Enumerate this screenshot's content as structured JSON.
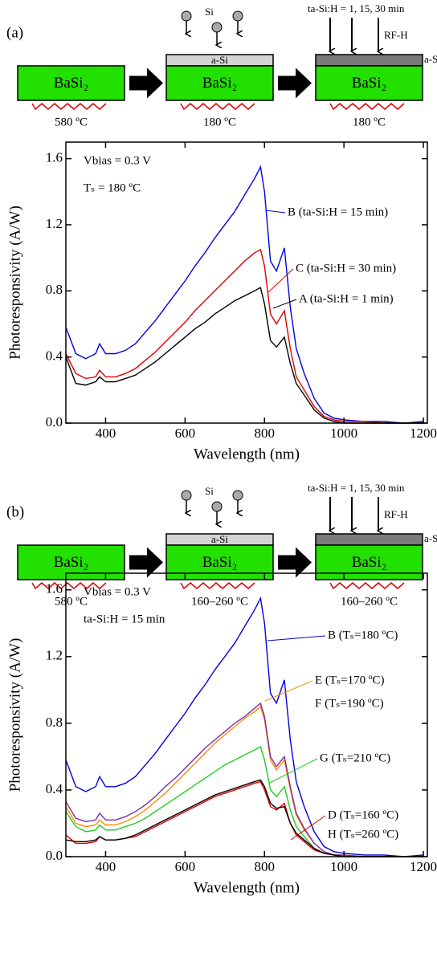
{
  "diagrams": [
    {
      "label": "(a)",
      "steps": [
        {
          "block": "BaSi₂",
          "temp": "580 ºC"
        },
        {
          "block": "BaSi₂",
          "layer": "a-Si",
          "source": "Si",
          "temp": "180 ºC"
        },
        {
          "block": "BaSi₂",
          "layer": "a-Si:H",
          "treatment": "RF-H",
          "time": "ta-Si:H = 1, 15, 30 min",
          "temp": "180 ºC"
        }
      ]
    },
    {
      "label": "(b)",
      "steps": [
        {
          "block": "BaSi₂",
          "temp": "580 ºC"
        },
        {
          "block": "BaSi₂",
          "layer": "a-Si",
          "source": "Si",
          "temp": "160–260 ºC"
        },
        {
          "block": "BaSi₂",
          "layer": "a-Si:H",
          "treatment": "RF-H",
          "time": "ta-Si:H = 1, 15, 30 min",
          "temp": "160–260 ºC"
        }
      ]
    }
  ],
  "chart_data": [
    {
      "type": "line",
      "xlabel": "Wavelength (nm)",
      "ylabel": "Photoresponsivity (A/W)",
      "annotations": [
        "Vbias = 0.3 V",
        "Tₛ = 180 ºC"
      ],
      "xlim": [
        300,
        1210
      ],
      "ylim": [
        0,
        1.7
      ],
      "xticks": [
        400,
        600,
        800,
        1000,
        1200
      ],
      "yticks": [
        {
          "value": 0,
          "label": "0.0"
        },
        0.4,
        0.8,
        1.2,
        1.6
      ],
      "grid": false,
      "x": [
        300,
        325,
        350,
        375,
        385,
        400,
        425,
        450,
        475,
        500,
        525,
        550,
        575,
        600,
        625,
        650,
        675,
        700,
        725,
        750,
        775,
        790,
        800,
        815,
        830,
        850,
        865,
        880,
        900,
        925,
        950,
        975,
        1000,
        1050,
        1100,
        1150,
        1200
      ],
      "series": [
        {
          "name": "B (ta-Si:H = 15 min)",
          "color": "#0000e0",
          "values": [
            0.58,
            0.42,
            0.39,
            0.42,
            0.48,
            0.42,
            0.42,
            0.44,
            0.48,
            0.55,
            0.62,
            0.7,
            0.78,
            0.86,
            0.95,
            1.03,
            1.12,
            1.2,
            1.28,
            1.38,
            1.48,
            1.55,
            1.4,
            0.98,
            0.92,
            1.06,
            0.7,
            0.45,
            0.3,
            0.15,
            0.06,
            0.03,
            0.02,
            0.01,
            0.01,
            0.0,
            0.01
          ]
        },
        {
          "name": "C (ta-Si:H = 30 min)",
          "color": "#e00000",
          "values": [
            0.42,
            0.3,
            0.27,
            0.28,
            0.32,
            0.28,
            0.28,
            0.3,
            0.33,
            0.38,
            0.43,
            0.49,
            0.55,
            0.61,
            0.68,
            0.74,
            0.8,
            0.86,
            0.92,
            0.98,
            1.03,
            1.05,
            0.95,
            0.66,
            0.6,
            0.68,
            0.45,
            0.28,
            0.2,
            0.1,
            0.04,
            0.02,
            0.01,
            0.01,
            0.0,
            0.0,
            0.0
          ]
        },
        {
          "name": "A (ta-Si:H = 1 min)",
          "color": "#000000",
          "values": [
            0.4,
            0.24,
            0.23,
            0.25,
            0.28,
            0.25,
            0.25,
            0.27,
            0.29,
            0.33,
            0.37,
            0.42,
            0.47,
            0.52,
            0.57,
            0.61,
            0.66,
            0.7,
            0.74,
            0.77,
            0.8,
            0.82,
            0.72,
            0.5,
            0.46,
            0.52,
            0.36,
            0.24,
            0.17,
            0.08,
            0.03,
            0.01,
            0.0,
            0.0,
            0.0,
            0.0,
            0.0
          ]
        }
      ]
    },
    {
      "type": "line",
      "xlabel": "Wavelength (nm)",
      "ylabel": "Photoresponsivity (A/W)",
      "annotations": [
        "Vbias = 0.3 V",
        "ta-Si:H = 15 min"
      ],
      "xlim": [
        300,
        1210
      ],
      "ylim": [
        0,
        1.7
      ],
      "xticks": [
        400,
        600,
        800,
        1000,
        1200
      ],
      "yticks": [
        {
          "value": 0,
          "label": "0.0"
        },
        0.4,
        0.8,
        1.2,
        1.6
      ],
      "grid": false,
      "x": [
        300,
        325,
        350,
        375,
        385,
        400,
        425,
        450,
        475,
        500,
        525,
        550,
        575,
        600,
        625,
        650,
        675,
        700,
        725,
        750,
        775,
        790,
        800,
        815,
        830,
        850,
        865,
        880,
        900,
        925,
        950,
        975,
        1000,
        1050,
        1100,
        1150,
        1200
      ],
      "series": [
        {
          "name": "B (Tₛ=180 ºC)",
          "color": "#0000e0",
          "values": [
            0.58,
            0.42,
            0.39,
            0.42,
            0.48,
            0.42,
            0.42,
            0.44,
            0.48,
            0.55,
            0.62,
            0.7,
            0.78,
            0.86,
            0.95,
            1.03,
            1.12,
            1.2,
            1.28,
            1.38,
            1.48,
            1.55,
            1.4,
            0.98,
            0.92,
            1.06,
            0.7,
            0.45,
            0.3,
            0.15,
            0.06,
            0.03,
            0.02,
            0.01,
            0.01,
            0.0,
            0.01
          ]
        },
        {
          "name": "E (Tₛ=170 ºC)",
          "color": "#ff8c00",
          "values": [
            0.3,
            0.2,
            0.18,
            0.19,
            0.22,
            0.19,
            0.19,
            0.21,
            0.24,
            0.28,
            0.33,
            0.38,
            0.44,
            0.5,
            0.56,
            0.62,
            0.68,
            0.73,
            0.78,
            0.83,
            0.87,
            0.9,
            0.82,
            0.58,
            0.52,
            0.58,
            0.4,
            0.25,
            0.16,
            0.08,
            0.03,
            0.01,
            0.01,
            0.0,
            0.0,
            0.0,
            0.0
          ]
        },
        {
          "name": "F (Tₛ=190 ºC)",
          "color": "#7b2fa8",
          "values": [
            0.33,
            0.23,
            0.21,
            0.22,
            0.26,
            0.22,
            0.22,
            0.24,
            0.27,
            0.31,
            0.36,
            0.42,
            0.47,
            0.53,
            0.59,
            0.65,
            0.7,
            0.75,
            0.8,
            0.84,
            0.89,
            0.92,
            0.84,
            0.6,
            0.54,
            0.6,
            0.42,
            0.26,
            0.17,
            0.08,
            0.03,
            0.01,
            0.01,
            0.0,
            0.0,
            0.0,
            0.0
          ]
        },
        {
          "name": "G (Tₛ=210 ºC)",
          "color": "#22cc22",
          "values": [
            0.27,
            0.18,
            0.15,
            0.16,
            0.19,
            0.16,
            0.16,
            0.18,
            0.2,
            0.23,
            0.27,
            0.31,
            0.35,
            0.39,
            0.43,
            0.47,
            0.51,
            0.55,
            0.58,
            0.61,
            0.64,
            0.66,
            0.58,
            0.4,
            0.36,
            0.42,
            0.28,
            0.18,
            0.12,
            0.05,
            0.02,
            0.01,
            0.0,
            0.0,
            0.0,
            0.0,
            0.0
          ]
        },
        {
          "name": "D (Tₛ=160 ºC)",
          "color": "#e00000",
          "values": [
            0.13,
            0.08,
            0.08,
            0.09,
            0.12,
            0.1,
            0.1,
            0.11,
            0.12,
            0.15,
            0.18,
            0.21,
            0.24,
            0.27,
            0.3,
            0.33,
            0.36,
            0.38,
            0.4,
            0.42,
            0.44,
            0.45,
            0.4,
            0.3,
            0.28,
            0.32,
            0.2,
            0.13,
            0.09,
            0.04,
            0.02,
            0.01,
            0.0,
            0.0,
            0.0,
            0.0,
            0.0
          ]
        },
        {
          "name": "H (Tₛ=260 ºC)",
          "color": "#000000",
          "values": [
            0.1,
            0.09,
            0.09,
            0.1,
            0.12,
            0.1,
            0.1,
            0.11,
            0.13,
            0.16,
            0.19,
            0.22,
            0.25,
            0.28,
            0.31,
            0.34,
            0.37,
            0.39,
            0.41,
            0.43,
            0.45,
            0.46,
            0.42,
            0.32,
            0.29,
            0.3,
            0.2,
            0.14,
            0.1,
            0.05,
            0.02,
            0.01,
            0.0,
            0.0,
            0.0,
            0.0,
            0.0
          ]
        }
      ]
    }
  ]
}
